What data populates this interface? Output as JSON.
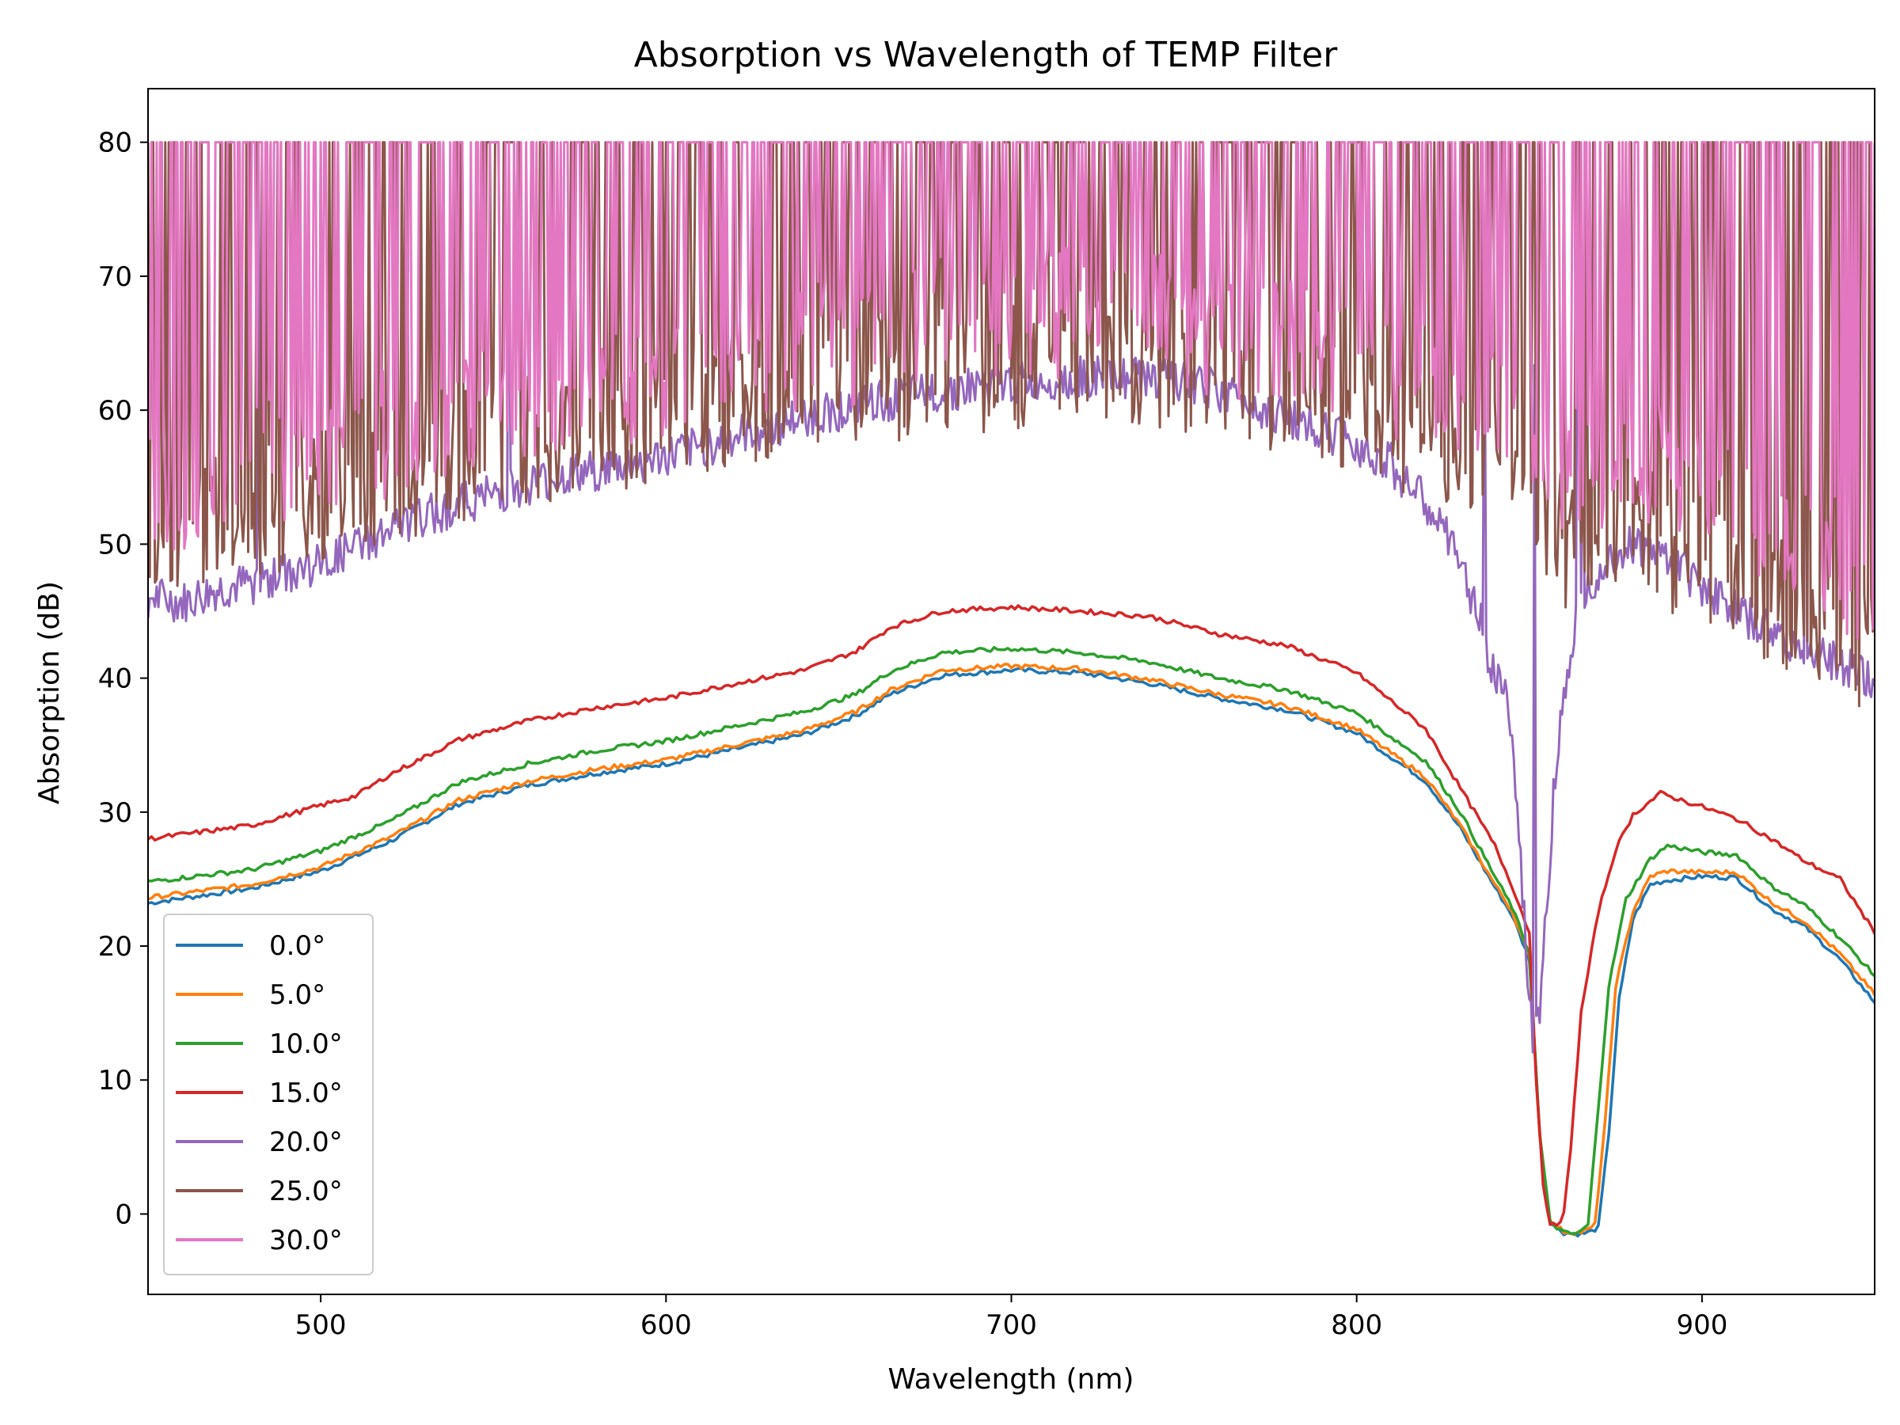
{
  "chart_data": {
    "type": "line",
    "title": "Absorption vs Wavelength of TEMP Filter",
    "xlabel": "Wavelength (nm)",
    "ylabel": "Absorption (dB)",
    "xlim": [
      450,
      950
    ],
    "ylim": [
      -6,
      84
    ],
    "xticks": [
      500,
      600,
      700,
      800,
      900
    ],
    "yticks": [
      0,
      10,
      20,
      30,
      40,
      50,
      60,
      70,
      80
    ],
    "legend_position": "lower-left",
    "grid": false,
    "series": [
      {
        "name": "0.0°",
        "color": "#1f77b4",
        "x": [
          450,
          480,
          500,
          520,
          540,
          560,
          580,
          600,
          620,
          640,
          655,
          665,
          680,
          700,
          720,
          740,
          760,
          780,
          800,
          820,
          830,
          840,
          845,
          850,
          853,
          856,
          860,
          865,
          868,
          870,
          873,
          876,
          880,
          885,
          890,
          900,
          910,
          920,
          930,
          940,
          950
        ],
        "y": [
          23.2,
          24.3,
          25.6,
          27.8,
          30.6,
          32.0,
          32.9,
          33.6,
          34.7,
          35.8,
          37.2,
          38.8,
          40.2,
          40.6,
          40.4,
          39.6,
          38.5,
          37.6,
          35.9,
          32.3,
          28.8,
          24.4,
          22.3,
          19.0,
          6.0,
          -0.6,
          -1.4,
          -1.5,
          -1.3,
          -1.0,
          6.0,
          16.0,
          22.0,
          24.6,
          24.9,
          25.2,
          25.1,
          22.8,
          21.4,
          19.0,
          15.8
        ]
      },
      {
        "name": "5.0°",
        "color": "#ff7f0e",
        "x": [
          450,
          480,
          500,
          520,
          540,
          560,
          580,
          600,
          620,
          640,
          655,
          665,
          680,
          700,
          720,
          740,
          760,
          780,
          800,
          820,
          830,
          840,
          845,
          850,
          853,
          856,
          860,
          864,
          867,
          869,
          872,
          875,
          880,
          885,
          890,
          900,
          910,
          920,
          930,
          940,
          950
        ],
        "y": [
          23.6,
          24.6,
          25.9,
          28.1,
          30.9,
          32.3,
          33.2,
          33.9,
          35.0,
          36.1,
          37.5,
          39.1,
          40.6,
          40.9,
          40.7,
          39.9,
          38.8,
          37.9,
          36.2,
          32.6,
          29.0,
          24.6,
          22.6,
          19.2,
          6.0,
          -0.6,
          -1.3,
          -1.4,
          -1.2,
          -0.8,
          7.0,
          17.0,
          22.6,
          25.2,
          25.6,
          25.5,
          25.5,
          23.3,
          21.8,
          19.4,
          16.4
        ]
      },
      {
        "name": "10.0°",
        "color": "#2ca02c",
        "x": [
          450,
          480,
          500,
          520,
          540,
          560,
          580,
          600,
          620,
          640,
          655,
          665,
          680,
          700,
          720,
          740,
          760,
          780,
          800,
          820,
          830,
          840,
          845,
          850,
          853,
          856,
          860,
          863,
          865,
          867,
          870,
          873,
          878,
          885,
          890,
          900,
          910,
          920,
          930,
          940,
          950
        ],
        "y": [
          24.8,
          25.7,
          27.1,
          29.3,
          32.2,
          33.6,
          34.6,
          35.3,
          36.4,
          37.5,
          38.8,
          40.5,
          41.9,
          42.2,
          41.9,
          41.2,
          40.0,
          39.1,
          37.4,
          33.8,
          30.0,
          25.2,
          22.9,
          19.5,
          6.0,
          -0.6,
          -1.4,
          -1.5,
          -1.3,
          -0.8,
          8.0,
          17.0,
          23.5,
          26.5,
          27.5,
          27.0,
          26.8,
          24.5,
          23.0,
          20.6,
          17.8
        ]
      },
      {
        "name": "15.0°",
        "color": "#d62728",
        "x": [
          450,
          480,
          500,
          510,
          520,
          540,
          560,
          580,
          600,
          620,
          640,
          655,
          665,
          680,
          700,
          720,
          740,
          760,
          780,
          800,
          820,
          830,
          840,
          845,
          850,
          852,
          854,
          856,
          858,
          860,
          862,
          865,
          870,
          875,
          880,
          888,
          900,
          910,
          920,
          930,
          940,
          950
        ],
        "y": [
          28.0,
          29.0,
          30.5,
          31.2,
          32.8,
          35.4,
          36.8,
          37.8,
          38.5,
          39.6,
          40.6,
          42.0,
          43.8,
          45.0,
          45.3,
          45.0,
          44.6,
          43.3,
          42.4,
          40.4,
          36.2,
          31.8,
          27.5,
          24.5,
          21.0,
          10.0,
          2.0,
          -0.6,
          -1.0,
          0.0,
          5.0,
          15.0,
          22.6,
          27.2,
          29.8,
          31.4,
          30.4,
          29.5,
          28.0,
          26.3,
          25.0,
          21.0
        ]
      },
      {
        "name": "20.0°",
        "color": "#9467bd",
        "x": [
          450,
          460,
          470,
          480,
          500,
          520,
          540,
          560,
          580,
          600,
          620,
          640,
          660,
          680,
          700,
          720,
          740,
          760,
          780,
          800,
          810,
          820,
          825,
          830,
          835,
          840,
          843,
          845,
          847,
          849,
          850,
          851,
          853,
          855,
          857,
          860,
          863,
          866,
          870,
          875,
          880,
          890,
          900,
          910,
          920,
          930,
          940,
          950
        ],
        "y": [
          46.0,
          45.5,
          46.5,
          47.0,
          48.5,
          51.0,
          53.0,
          54.5,
          55.5,
          56.5,
          58.0,
          59.5,
          60.5,
          61.5,
          62.0,
          62.5,
          62.5,
          61.5,
          59.5,
          57.5,
          56.0,
          53.0,
          51.0,
          48.5,
          45.0,
          40.0,
          39.5,
          35.0,
          28.0,
          20.0,
          16.0,
          13.0,
          15.0,
          23.0,
          31.0,
          39.0,
          44.0,
          46.5,
          48.0,
          49.5,
          50.0,
          49.0,
          47.0,
          45.0,
          43.5,
          42.0,
          41.0,
          39.5
        ]
      },
      {
        "name": "25.0°",
        "color": "#8c564b",
        "x": [
          450,
          460,
          470,
          480,
          500,
          520,
          540,
          560,
          580,
          600,
          620,
          640,
          660,
          680,
          700,
          720,
          740,
          760,
          780,
          800,
          810,
          820,
          830,
          840,
          850,
          855,
          860,
          870,
          880,
          890,
          900,
          910,
          920,
          930,
          940,
          950
        ],
        "y": [
          50.0,
          50.5,
          51.5,
          52.5,
          53.5,
          55.0,
          56.5,
          57.5,
          58.5,
          59.5,
          60.5,
          61.5,
          62.5,
          63.0,
          63.5,
          64.0,
          63.5,
          62.5,
          61.5,
          60.0,
          59.0,
          58.0,
          57.0,
          56.0,
          55.5,
          52.0,
          50.0,
          50.5,
          51.0,
          50.0,
          49.0,
          47.5,
          46.0,
          44.5,
          43.0,
          41.5
        ]
      },
      {
        "name": "30.0°",
        "color": "#e377c2",
        "x": [
          450,
          460,
          470,
          480,
          500,
          520,
          540,
          560,
          580,
          600,
          620,
          640,
          660,
          680,
          700,
          720,
          740,
          760,
          780,
          800,
          810,
          820,
          830,
          840,
          850,
          855,
          860,
          870,
          880,
          890,
          900,
          910,
          920,
          930,
          940,
          950
        ],
        "y": [
          54.0,
          54.0,
          55.0,
          56.0,
          57.0,
          58.5,
          59.5,
          60.5,
          61.5,
          62.5,
          63.5,
          64.5,
          65.5,
          66.5,
          67.0,
          67.5,
          67.0,
          66.0,
          65.0,
          63.5,
          62.5,
          61.5,
          60.5,
          59.5,
          59.0,
          57.0,
          55.5,
          56.0,
          56.5,
          55.5,
          54.5,
          53.0,
          51.5,
          50.0,
          48.5,
          47.0
        ]
      }
    ]
  }
}
